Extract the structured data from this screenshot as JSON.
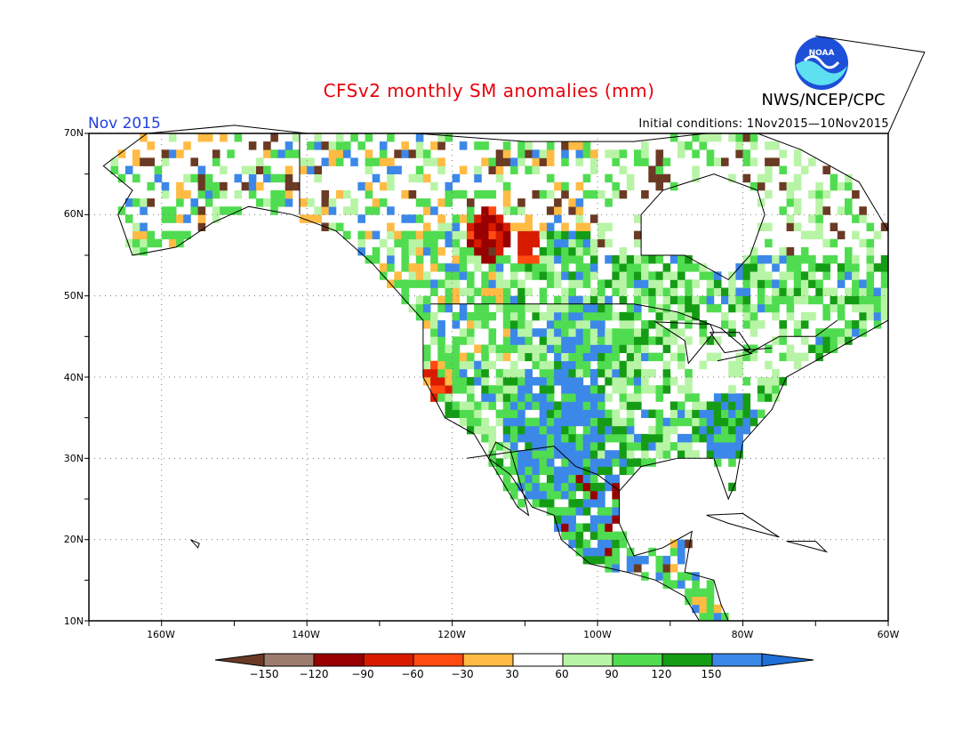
{
  "header": {
    "title": "CFSv2 monthly SM anomalies (mm)",
    "agency": "NWS/NCEP/CPC",
    "period": "Nov 2015",
    "initial_conditions": "Initial conditions: 1Nov2015—10Nov2015"
  },
  "logo": {
    "name": "noaa-logo",
    "text": "NOAA"
  },
  "map": {
    "lon_range": [
      -170,
      -60
    ],
    "lat_range": [
      10,
      70
    ],
    "lat_labels": [
      "10N",
      "20N",
      "30N",
      "40N",
      "50N",
      "60N",
      "70N"
    ],
    "lon_labels": [
      "160W",
      "140W",
      "120W",
      "100W",
      "80W",
      "60W"
    ],
    "grid": "dotted"
  },
  "colorbar": {
    "labels": [
      "−150",
      "−120",
      "−90",
      "−60",
      "−30",
      "30",
      "60",
      "90",
      "120",
      "150"
    ],
    "colors": [
      "#6b3a24",
      "#9c7c6c",
      "#990000",
      "#d81b00",
      "#ff4a10",
      "#ffbb44",
      "#ffffff",
      "#b8f4a6",
      "#50dc50",
      "#159c15",
      "#3c88e8",
      "#1f6fd8"
    ]
  },
  "colors": {
    "title": "#e8000b",
    "period": "#1f3fe0"
  }
}
